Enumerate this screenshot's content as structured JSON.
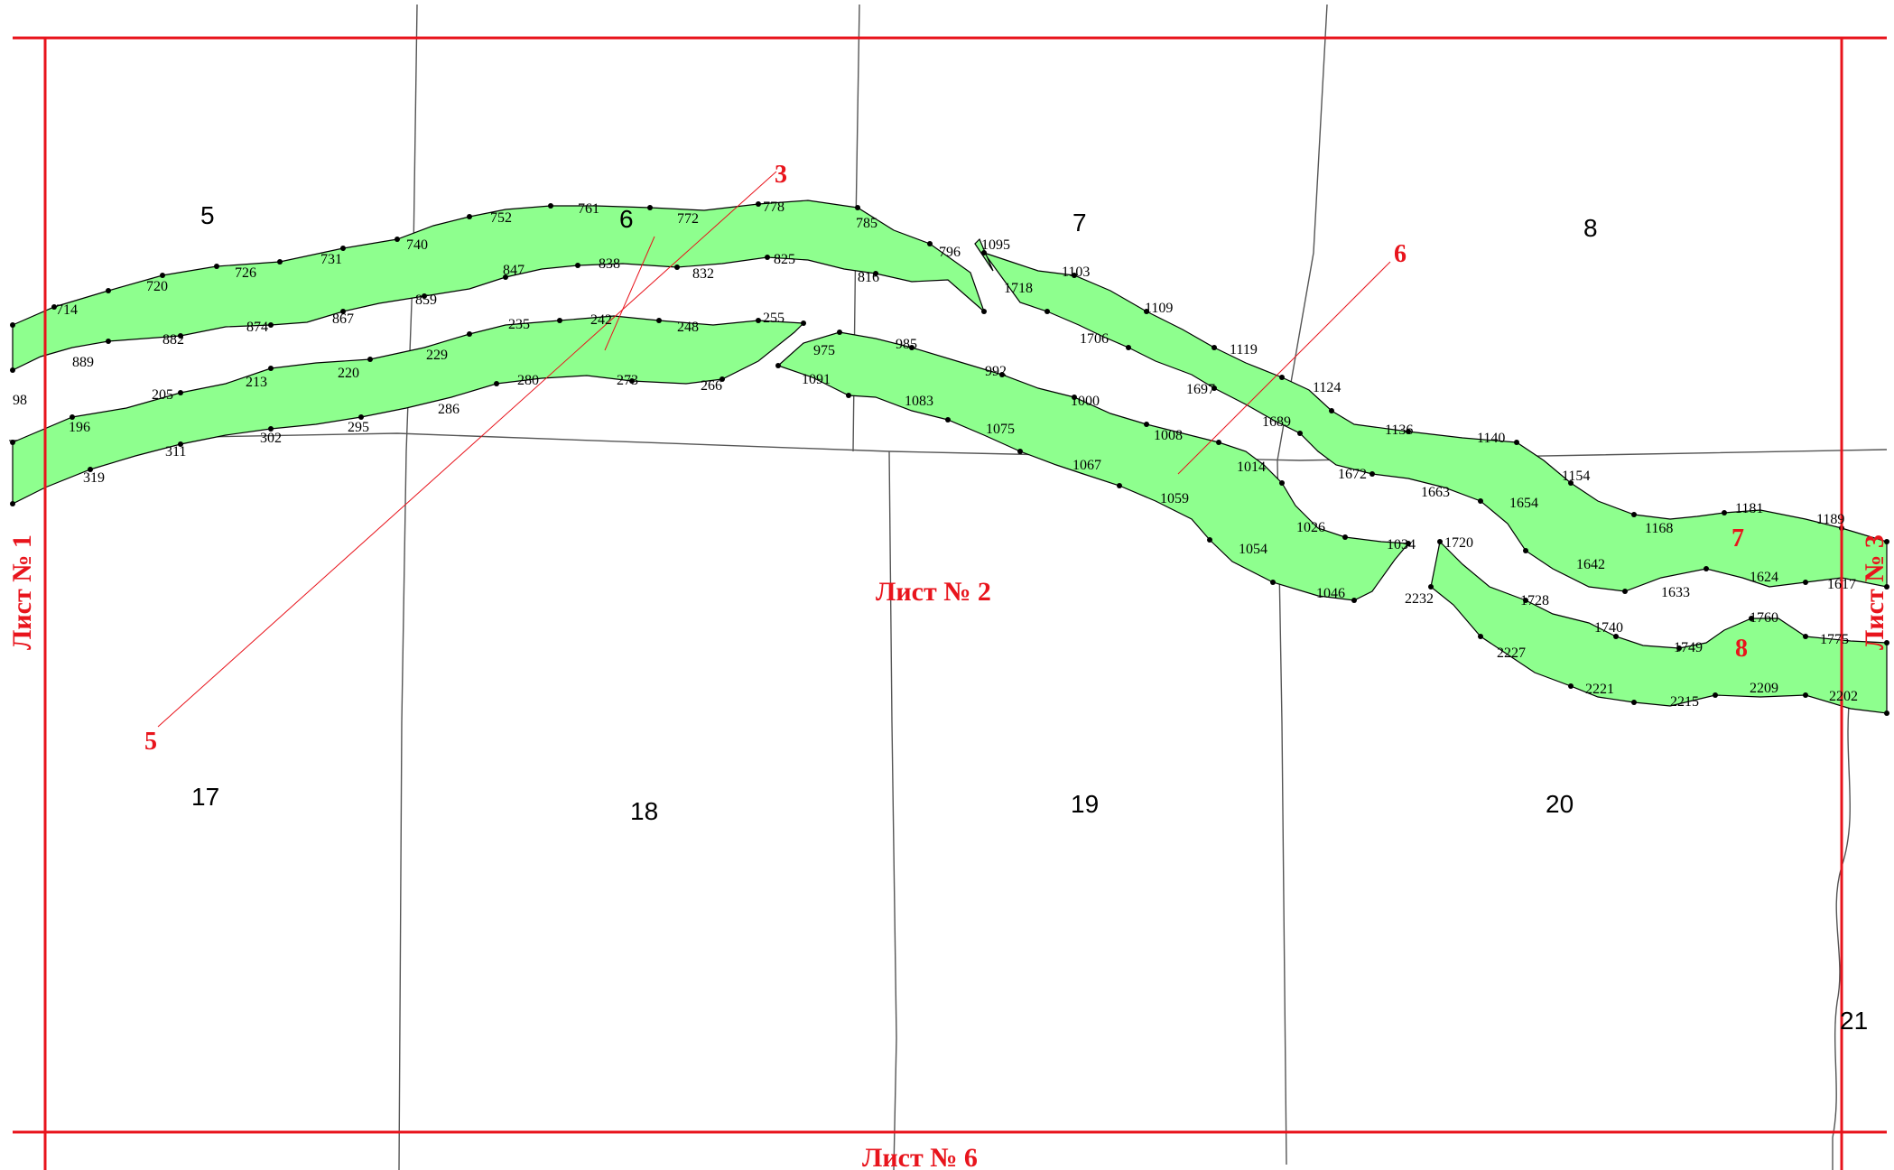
{
  "sheets": {
    "left": "Лист № 1",
    "center": "Лист № 2",
    "right": "Лист № 3",
    "bottom": "Лист № 6"
  },
  "parcels": [
    "5",
    "6",
    "7",
    "8",
    "17",
    "18",
    "19",
    "20",
    "21"
  ],
  "sections": [
    "3",
    "5",
    "6",
    "7",
    "8"
  ],
  "points": {
    "p714": "714",
    "p720": "720",
    "p726": "726",
    "p731": "731",
    "p740": "740",
    "p752": "752",
    "p761": "761",
    "p772": "772",
    "p778": "778",
    "p785": "785",
    "p796": "796",
    "p889": "889",
    "p882": "882",
    "p874": "874",
    "p867": "867",
    "p859": "859",
    "p847": "847",
    "p838": "838",
    "p832": "832",
    "p825": "825",
    "p816": "816",
    "p98": "98",
    "p196": "196",
    "p205": "205",
    "p213": "213",
    "p220": "220",
    "p229": "229",
    "p235": "235",
    "p242": "242",
    "p248": "248",
    "p255": "255",
    "p319": "319",
    "p311": "311",
    "p302": "302",
    "p295": "295",
    "p286": "286",
    "p280": "280",
    "p273": "273",
    "p266": "266",
    "p975": "975",
    "p985": "985",
    "p992": "992",
    "p1000": "1000",
    "p1008": "1008",
    "p1014": "1014",
    "p1091": "1091",
    "p1083": "1083",
    "p1075": "1075",
    "p1067": "1067",
    "p1059": "1059",
    "p1054": "1054",
    "p1026": "1026",
    "p1034": "1034",
    "p1046": "1046",
    "p1095": "1095",
    "p1103": "1103",
    "p1109": "1109",
    "p1119": "1119",
    "p1124": "1124",
    "p1718": "1718",
    "p1706": "1706",
    "p1697": "1697",
    "p1689": "1689",
    "p1136": "1136",
    "p1140": "1140",
    "p1154": "1154",
    "p1168": "1168",
    "p1181": "1181",
    "p1189": "1189",
    "p1672": "1672",
    "p1663": "1663",
    "p1654": "1654",
    "p1642": "1642",
    "p1633": "1633",
    "p1624": "1624",
    "p1617": "1617",
    "p1720": "1720",
    "p1728": "1728",
    "p1740": "1740",
    "p1749": "1749",
    "p1760": "1760",
    "p1775": "1775",
    "p2232": "2232",
    "p2227": "2227",
    "p2221": "2221",
    "p2215": "2215",
    "p2209": "2209",
    "p2202": "2202"
  },
  "colors": {
    "strip_fill": "#8eff8e",
    "frame_red": "#e8141c",
    "parcel_line": "#555555"
  }
}
